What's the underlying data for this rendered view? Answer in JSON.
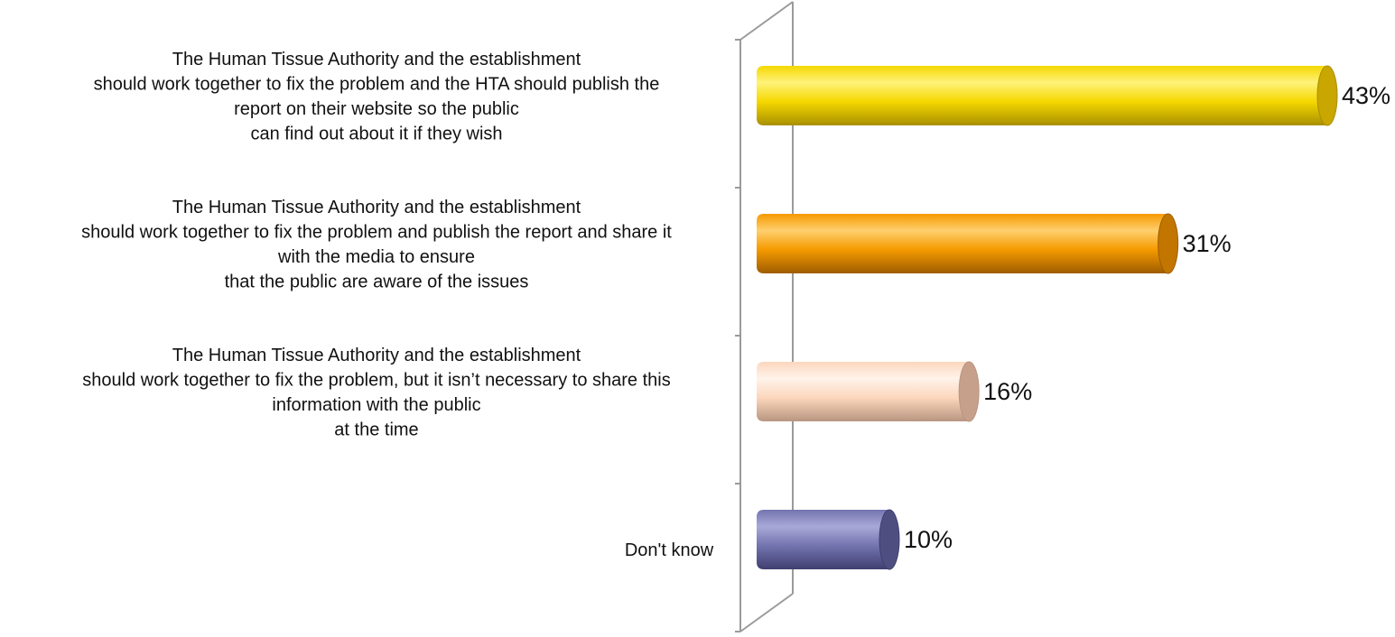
{
  "chart_data": {
    "type": "bar",
    "orientation": "horizontal",
    "style": "3d-cylinder",
    "title": "",
    "xlabel": "",
    "ylabel": "",
    "xlim": [
      0,
      45
    ],
    "grid": false,
    "legend": "none",
    "categories": [
      [
        "The Human Tissue Authority and the establishment",
        "should work together to fix the problem and the HTA should publish the",
        "report on their website so the public",
        "can find out about it if they wish"
      ],
      [
        "The Human Tissue Authority and the establishment",
        "should work together  to fix the problem and publish the report and share it",
        "with the media to ensure",
        "that the public are aware of the issues"
      ],
      [
        "The Human  Tissue Authority  and the establishment",
        "should work together  to fix the problem, but it isn’t  necessary to share this",
        "information with the public",
        "at the time"
      ],
      [
        "Don't know"
      ]
    ],
    "values": [
      43,
      31,
      16,
      10
    ],
    "value_labels": [
      "43%",
      "31%",
      "16%",
      "10%"
    ],
    "bar_colors": [
      {
        "light": "#fff27a",
        "mid": "#f5d800",
        "dark": "#a88f00",
        "cap": "#c9a600"
      },
      {
        "light": "#ffcf6e",
        "mid": "#f59a00",
        "dark": "#9e5c00",
        "cap": "#c27600"
      },
      {
        "light": "#fff3ea",
        "mid": "#fcd7bd",
        "dark": "#b89580",
        "cap": "#c7a08c"
      },
      {
        "light": "#a9a9d8",
        "mid": "#7474b0",
        "dark": "#3f3f70",
        "cap": "#4e4e80"
      }
    ],
    "axis_color": "#9a9a9a"
  }
}
